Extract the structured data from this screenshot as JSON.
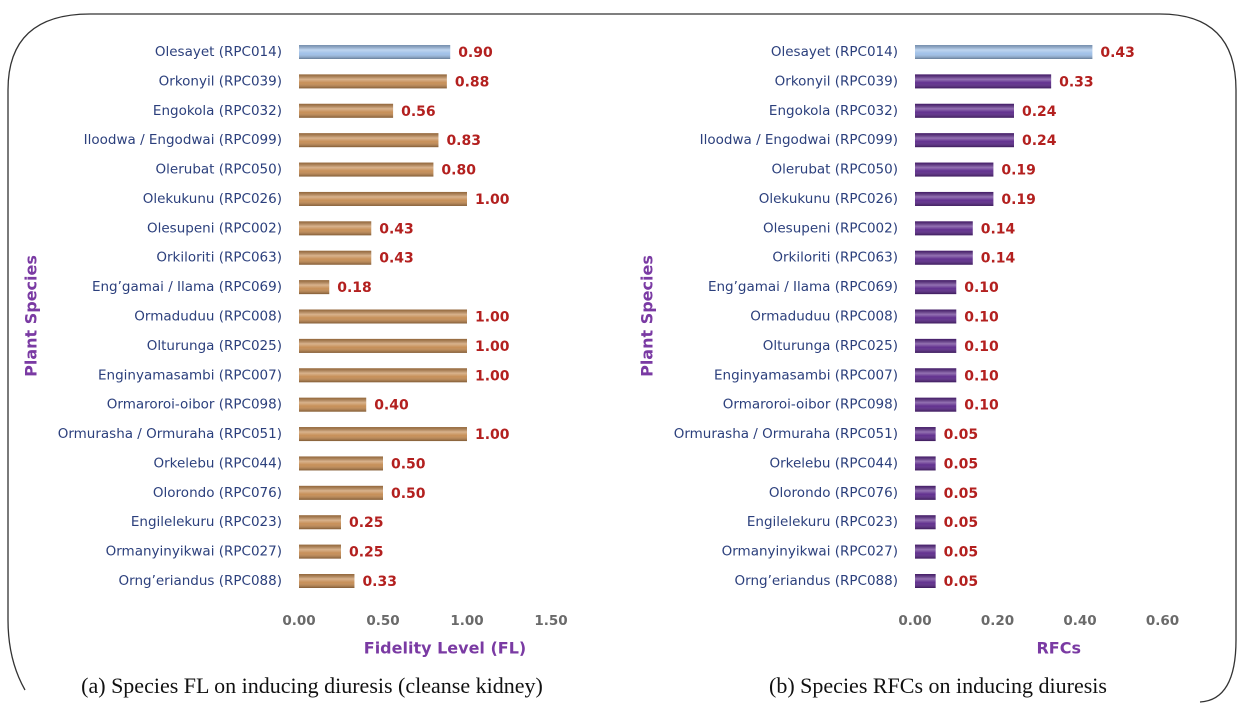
{
  "chart_data": [
    {
      "type": "bar",
      "orientation": "horizontal",
      "categories": [
        "Olesayet (RPC014)",
        "Orkonyil (RPC039)",
        "Engokola (RPC032)",
        "Iloodwa / Engodwai (RPC099)",
        "Olerubat (RPC050)",
        "Olekukunu (RPC026)",
        "Olesupeni (RPC002)",
        "Orkiloriti (RPC063)",
        "Eng’gamai / Ilama (RPC069)",
        "Ormaduduu (RPC008)",
        "Olturunga (RPC025)",
        "Enginyamasambi (RPC007)",
        "Ormaroroi-oibor (RPC098)",
        "Ormurasha / Ormuraha (RPC051)",
        "Orkelebu (RPC044)",
        "Olorondo (RPC076)",
        "Engilelekuru (RPC023)",
        "Ormanyinyikwai (RPC027)",
        "Orng’eriandus (RPC088)"
      ],
      "values": [
        0.9,
        0.88,
        0.56,
        0.83,
        0.8,
        1,
        0.43,
        0.43,
        0.18,
        1,
        1,
        1,
        0.4,
        1,
        0.5,
        0.5,
        0.25,
        0.25,
        0.33
      ],
      "value_labels": [
        "0.90",
        "0.88",
        "0.56",
        "0.83",
        "0.80",
        "1.00",
        "0.43",
        "0.43",
        "0.18",
        "1.00",
        "1.00",
        "1.00",
        "0.40",
        "1.00",
        "0.50",
        "0.50",
        "0.25",
        "0.25",
        "0.33"
      ],
      "colors": [
        "#9dbfe8",
        "#c48a50",
        "#c48a50",
        "#c48a50",
        "#c48a50",
        "#c48a50",
        "#c48a50",
        "#c48a50",
        "#c48a50",
        "#c48a50",
        "#c48a50",
        "#c48a50",
        "#c48a50",
        "#c48a50",
        "#c48a50",
        "#c48a50",
        "#c48a50",
        "#c48a50",
        "#c48a50"
      ],
      "xlim": [
        0,
        1.5
      ],
      "xticks": [
        {
          "value": 0,
          "label": "0.00"
        },
        {
          "value": 0.5,
          "label": "0.50"
        },
        {
          "value": 1,
          "label": "1.00"
        },
        {
          "value": 1.5,
          "label": "1.50"
        }
      ],
      "x_label": "Fidelity Level (FL)",
      "y_label": "Plant Species",
      "caption": "(a) Species FL on inducing diuresis (cleanse kidney)"
    },
    {
      "type": "bar",
      "orientation": "horizontal",
      "categories": [
        "Olesayet (RPC014)",
        "Orkonyil (RPC039)",
        "Engokola (RPC032)",
        "Iloodwa / Engodwai (RPC099)",
        "Olerubat (RPC050)",
        "Olekukunu (RPC026)",
        "Olesupeni (RPC002)",
        "Orkiloriti (RPC063)",
        "Eng’gamai / Ilama (RPC069)",
        "Ormaduduu (RPC008)",
        "Olturunga (RPC025)",
        "Enginyamasambi (RPC007)",
        "Ormaroroi-oibor (RPC098)",
        "Ormurasha / Ormuraha (RPC051)",
        "Orkelebu (RPC044)",
        "Olorondo (RPC076)",
        "Engilelekuru (RPC023)",
        "Ormanyinyikwai (RPC027)",
        "Orng’eriandus (RPC088)"
      ],
      "values": [
        0.43,
        0.33,
        0.24,
        0.24,
        0.19,
        0.19,
        0.14,
        0.14,
        0.1,
        0.1,
        0.1,
        0.1,
        0.1,
        0.05,
        0.05,
        0.05,
        0.05,
        0.05,
        0.05
      ],
      "value_labels": [
        "0.43",
        "0.33",
        "0.24",
        "0.24",
        "0.19",
        "0.19",
        "0.14",
        "0.14",
        "0.10",
        "0.10",
        "0.10",
        "0.10",
        "0.10",
        "0.05",
        "0.05",
        "0.05",
        "0.05",
        "0.05",
        "0.05"
      ],
      "colors": [
        "#9dbfe8",
        "#5a2689",
        "#5a2689",
        "#5a2689",
        "#5a2689",
        "#5a2689",
        "#5a2689",
        "#5a2689",
        "#5a2689",
        "#5a2689",
        "#5a2689",
        "#5a2689",
        "#5a2689",
        "#5a2689",
        "#5a2689",
        "#5a2689",
        "#5a2689",
        "#5a2689",
        "#5a2689"
      ],
      "xlim": [
        0,
        0.6
      ],
      "xticks": [
        {
          "value": 0,
          "label": "0.00"
        },
        {
          "value": 0.2,
          "label": "0.20"
        },
        {
          "value": 0.4,
          "label": "0.40"
        },
        {
          "value": 0.6,
          "label": "0.60"
        }
      ],
      "x_label": "RFCs",
      "y_label": "Plant Species",
      "caption": "(b)  Species  RFCs on inducing diuresis"
    }
  ]
}
